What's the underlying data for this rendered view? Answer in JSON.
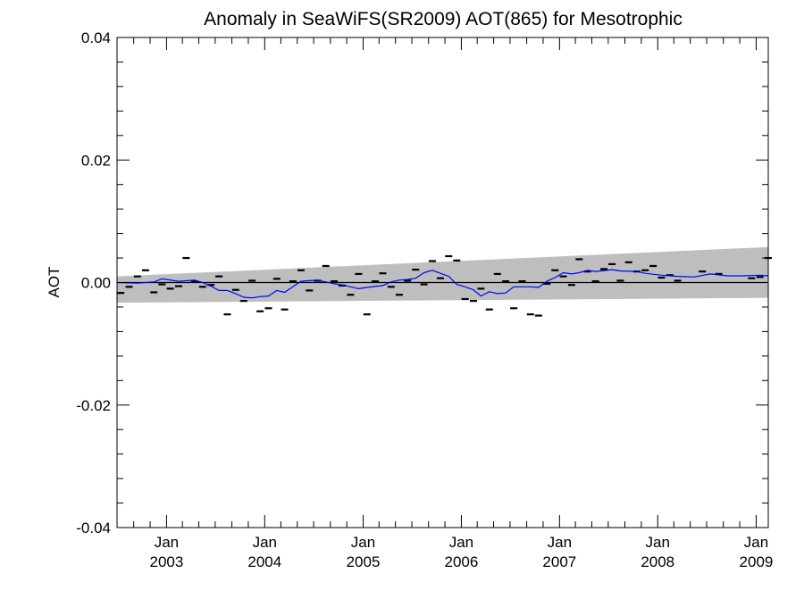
{
  "chart_data": {
    "type": "line",
    "title": "Anomaly in SeaWiFS(SR2009) AOT(865) for Mesotrophic",
    "xlabel": "",
    "ylabel": "AOT",
    "xlim": [
      "2002-07-01",
      "2009-02-15"
    ],
    "ylim": [
      -0.04,
      0.04
    ],
    "x_tick_labels": [
      {
        "month": "Jan",
        "year": "2003",
        "date": "2003-01-01"
      },
      {
        "month": "Jan",
        "year": "2004",
        "date": "2004-01-01"
      },
      {
        "month": "Jan",
        "year": "2005",
        "date": "2005-01-01"
      },
      {
        "month": "Jan",
        "year": "2006",
        "date": "2006-01-01"
      },
      {
        "month": "Jan",
        "year": "2007",
        "date": "2007-01-01"
      },
      {
        "month": "Jan",
        "year": "2008",
        "date": "2008-01-01"
      },
      {
        "month": "Jan",
        "year": "2009",
        "date": "2009-01-01"
      }
    ],
    "y_ticks": [
      -0.04,
      -0.02,
      0.0,
      0.02,
      0.04
    ],
    "y_tick_labels": [
      "-0.04",
      "-0.02",
      "0.00",
      "0.02",
      "0.04"
    ],
    "grid": false,
    "zero_line": 0.0,
    "band": {
      "x": [
        "2002-07-01",
        "2009-02-15"
      ],
      "upper": [
        0.001,
        0.0058
      ],
      "lower": [
        -0.0033,
        -0.0025
      ],
      "color": "#bebebe"
    },
    "series": [
      {
        "style": "markers",
        "color": "#000000",
        "points": [
          {
            "x": "2002-07-15",
            "y": -0.0017
          },
          {
            "x": "2002-08-15",
            "y": -0.0007
          },
          {
            "x": "2002-09-15",
            "y": 0.001
          },
          {
            "x": "2002-10-15",
            "y": 0.002
          },
          {
            "x": "2002-11-15",
            "y": -0.0016
          },
          {
            "x": "2002-12-15",
            "y": -0.0003
          },
          {
            "x": "2003-01-15",
            "y": -0.001
          },
          {
            "x": "2003-02-15",
            "y": -0.0006
          },
          {
            "x": "2003-03-15",
            "y": 0.004
          },
          {
            "x": "2003-04-15",
            "y": 0.0002
          },
          {
            "x": "2003-05-15",
            "y": -0.0007
          },
          {
            "x": "2003-06-15",
            "y": -0.0004
          },
          {
            "x": "2003-07-15",
            "y": 0.001
          },
          {
            "x": "2003-08-15",
            "y": -0.0052
          },
          {
            "x": "2003-09-15",
            "y": -0.0012
          },
          {
            "x": "2003-10-15",
            "y": -0.003
          },
          {
            "x": "2003-11-15",
            "y": 0.0003
          },
          {
            "x": "2003-12-15",
            "y": -0.0047
          },
          {
            "x": "2004-01-15",
            "y": -0.0042
          },
          {
            "x": "2004-02-15",
            "y": 0.0006
          },
          {
            "x": "2004-03-15",
            "y": -0.0044
          },
          {
            "x": "2004-04-15",
            "y": 0.0002
          },
          {
            "x": "2004-05-15",
            "y": 0.002
          },
          {
            "x": "2004-06-15",
            "y": -0.0013
          },
          {
            "x": "2004-07-15",
            "y": 0.0003
          },
          {
            "x": "2004-08-15",
            "y": 0.0027
          },
          {
            "x": "2004-09-15",
            "y": 0.0002
          },
          {
            "x": "2004-10-15",
            "y": -0.0005
          },
          {
            "x": "2004-11-15",
            "y": -0.002
          },
          {
            "x": "2004-12-15",
            "y": 0.0014
          },
          {
            "x": "2005-01-15",
            "y": -0.0052
          },
          {
            "x": "2005-02-15",
            "y": 0.0002
          },
          {
            "x": "2005-03-15",
            "y": 0.0015
          },
          {
            "x": "2005-04-15",
            "y": -0.0007
          },
          {
            "x": "2005-05-15",
            "y": -0.002
          },
          {
            "x": "2005-06-15",
            "y": 0.0003
          },
          {
            "x": "2005-07-15",
            "y": 0.0021
          },
          {
            "x": "2005-08-15",
            "y": -0.0003
          },
          {
            "x": "2005-09-15",
            "y": 0.0035
          },
          {
            "x": "2005-10-15",
            "y": 0.0007
          },
          {
            "x": "2005-11-15",
            "y": 0.0043
          },
          {
            "x": "2005-12-15",
            "y": 0.0036
          },
          {
            "x": "2006-01-15",
            "y": -0.0027
          },
          {
            "x": "2006-02-15",
            "y": -0.003
          },
          {
            "x": "2006-03-15",
            "y": -0.001
          },
          {
            "x": "2006-04-15",
            "y": -0.0044
          },
          {
            "x": "2006-05-15",
            "y": 0.0014
          },
          {
            "x": "2006-06-15",
            "y": 0.0002
          },
          {
            "x": "2006-07-15",
            "y": -0.0042
          },
          {
            "x": "2006-08-15",
            "y": 0.0002
          },
          {
            "x": "2006-09-15",
            "y": -0.0052
          },
          {
            "x": "2006-10-15",
            "y": -0.0054
          },
          {
            "x": "2006-11-15",
            "y": -0.0002
          },
          {
            "x": "2006-12-15",
            "y": 0.002
          },
          {
            "x": "2007-01-15",
            "y": 0.001
          },
          {
            "x": "2007-02-15",
            "y": -0.0004
          },
          {
            "x": "2007-03-15",
            "y": 0.0038
          },
          {
            "x": "2007-04-15",
            "y": 0.0018
          },
          {
            "x": "2007-05-15",
            "y": 0.0002
          },
          {
            "x": "2007-06-15",
            "y": 0.0022
          },
          {
            "x": "2007-07-15",
            "y": 0.003
          },
          {
            "x": "2007-08-15",
            "y": 0.0003
          },
          {
            "x": "2007-09-15",
            "y": 0.0033
          },
          {
            "x": "2007-10-15",
            "y": 0.0018
          },
          {
            "x": "2007-11-15",
            "y": 0.002
          },
          {
            "x": "2007-12-15",
            "y": 0.0027
          },
          {
            "x": "2008-01-15",
            "y": 0.0008
          },
          {
            "x": "2008-02-15",
            "y": 0.0012
          },
          {
            "x": "2008-03-15",
            "y": 0.0003
          },
          {
            "x": "2008-06-15",
            "y": 0.0018
          },
          {
            "x": "2008-08-15",
            "y": 0.0014
          },
          {
            "x": "2008-12-15",
            "y": 0.0007
          },
          {
            "x": "2009-01-15",
            "y": 0.0009
          },
          {
            "x": "2009-02-15",
            "y": 0.004
          }
        ]
      },
      {
        "style": "line",
        "color": "#0000ff",
        "points": [
          {
            "x": "2002-07-01",
            "y": 0.0
          },
          {
            "x": "2002-09-15",
            "y": -0.0001
          },
          {
            "x": "2002-11-15",
            "y": 0.0001
          },
          {
            "x": "2002-12-15",
            "y": 0.0006
          },
          {
            "x": "2003-02-15",
            "y": 0.0002
          },
          {
            "x": "2003-04-15",
            "y": 0.0004
          },
          {
            "x": "2003-05-15",
            "y": 0.0
          },
          {
            "x": "2003-06-15",
            "y": -0.0006
          },
          {
            "x": "2003-07-15",
            "y": -0.0013
          },
          {
            "x": "2003-08-15",
            "y": -0.0013
          },
          {
            "x": "2003-09-15",
            "y": -0.0018
          },
          {
            "x": "2003-10-15",
            "y": -0.0024
          },
          {
            "x": "2003-11-15",
            "y": -0.0025
          },
          {
            "x": "2003-12-15",
            "y": -0.0023
          },
          {
            "x": "2004-01-15",
            "y": -0.0022
          },
          {
            "x": "2004-02-15",
            "y": -0.0013
          },
          {
            "x": "2004-03-15",
            "y": -0.0016
          },
          {
            "x": "2004-04-15",
            "y": -0.0007
          },
          {
            "x": "2004-05-15",
            "y": 0.0002
          },
          {
            "x": "2004-06-15",
            "y": 0.0003
          },
          {
            "x": "2004-07-15",
            "y": 0.0004
          },
          {
            "x": "2004-08-15",
            "y": 0.0001
          },
          {
            "x": "2004-09-15",
            "y": -0.0002
          },
          {
            "x": "2004-10-15",
            "y": -0.0004
          },
          {
            "x": "2004-11-15",
            "y": -0.0007
          },
          {
            "x": "2004-12-15",
            "y": -0.001
          },
          {
            "x": "2005-01-15",
            "y": -0.0008
          },
          {
            "x": "2005-03-15",
            "y": -0.0005
          },
          {
            "x": "2005-04-15",
            "y": 0.0001
          },
          {
            "x": "2005-05-15",
            "y": 0.0004
          },
          {
            "x": "2005-06-15",
            "y": 0.0005
          },
          {
            "x": "2005-07-15",
            "y": 0.0007
          },
          {
            "x": "2005-08-15",
            "y": 0.0016
          },
          {
            "x": "2005-09-15",
            "y": 0.002
          },
          {
            "x": "2005-10-15",
            "y": 0.0015
          },
          {
            "x": "2005-11-15",
            "y": 0.001
          },
          {
            "x": "2005-12-15",
            "y": -0.0003
          },
          {
            "x": "2006-01-15",
            "y": -0.0007
          },
          {
            "x": "2006-02-15",
            "y": -0.0012
          },
          {
            "x": "2006-03-15",
            "y": -0.0022
          },
          {
            "x": "2006-04-15",
            "y": -0.0015
          },
          {
            "x": "2006-05-15",
            "y": -0.0018
          },
          {
            "x": "2006-06-15",
            "y": -0.0017
          },
          {
            "x": "2006-07-15",
            "y": -0.0007
          },
          {
            "x": "2006-09-15",
            "y": -0.0007
          },
          {
            "x": "2006-10-15",
            "y": -0.0008
          },
          {
            "x": "2006-11-15",
            "y": 0.0002
          },
          {
            "x": "2006-12-15",
            "y": 0.0008
          },
          {
            "x": "2007-01-15",
            "y": 0.0016
          },
          {
            "x": "2007-02-15",
            "y": 0.0014
          },
          {
            "x": "2007-03-15",
            "y": 0.0016
          },
          {
            "x": "2007-04-15",
            "y": 0.002
          },
          {
            "x": "2007-05-15",
            "y": 0.0018
          },
          {
            "x": "2007-07-15",
            "y": 0.0021
          },
          {
            "x": "2007-08-15",
            "y": 0.0019
          },
          {
            "x": "2007-10-15",
            "y": 0.0018
          },
          {
            "x": "2007-11-15",
            "y": 0.0015
          },
          {
            "x": "2008-01-15",
            "y": 0.0012
          },
          {
            "x": "2008-03-15",
            "y": 0.001
          },
          {
            "x": "2008-05-15",
            "y": 0.0009
          },
          {
            "x": "2008-07-15",
            "y": 0.0014
          },
          {
            "x": "2008-09-15",
            "y": 0.0011
          },
          {
            "x": "2008-11-15",
            "y": 0.0011
          },
          {
            "x": "2009-01-15",
            "y": 0.0012
          },
          {
            "x": "2009-02-15",
            "y": 0.0011
          }
        ]
      }
    ]
  }
}
